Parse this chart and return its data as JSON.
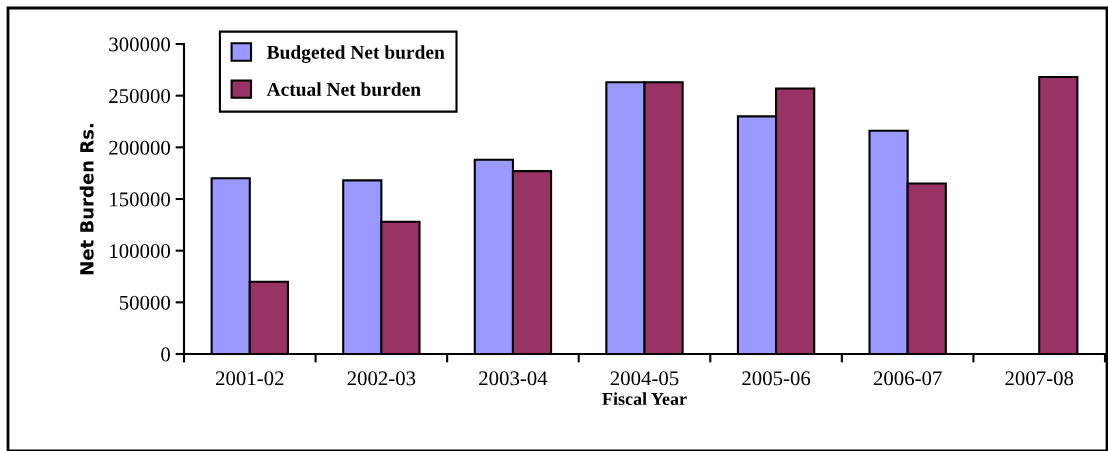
{
  "chart_data": {
    "type": "bar",
    "xlabel": "Fiscal Year",
    "ylabel": "Net Burden Rs.",
    "categories": [
      "2001-02",
      "2002-03",
      "2003-04",
      "2004-05",
      "2005-06",
      "2006-07",
      "2007-08"
    ],
    "series": [
      {
        "name": "Budgeted Net burden",
        "color": "#9999ff",
        "values": [
          170000,
          168000,
          188000,
          263000,
          230000,
          216000,
          null
        ]
      },
      {
        "name": "Actual Net burden",
        "color": "#993366",
        "values": [
          70000,
          128000,
          177000,
          263000,
          257000,
          165000,
          268000
        ]
      }
    ],
    "ylim": [
      0,
      300000
    ],
    "yticks": [
      0,
      50000,
      100000,
      150000,
      200000,
      250000,
      300000
    ],
    "grid": false,
    "legend": "top left"
  }
}
